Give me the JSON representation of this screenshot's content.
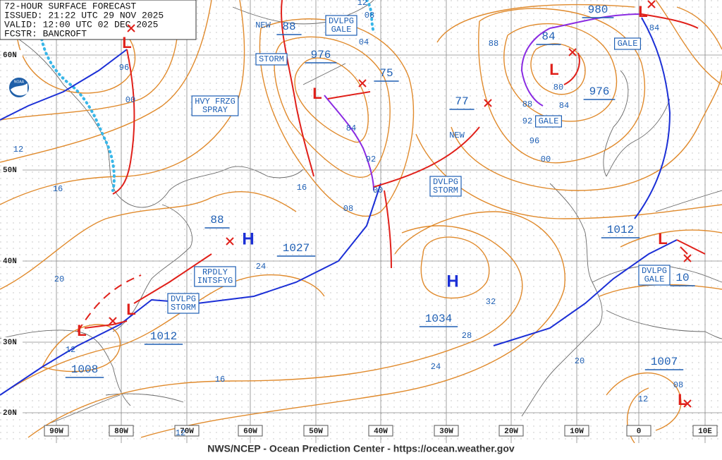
{
  "header": [
    "72-HOUR SURFACE FORECAST",
    "ISSUED: 21:22 UTC 29 NOV 2025",
    "VALID: 12:00 UTC 02 DEC 2025",
    "FCSTR: BANCROFT"
  ],
  "footer": "NWS/NCEP - Ocean Prediction Center - https://ocean.weather.gov",
  "logo": "NOAA",
  "lat_labels": [
    "60N",
    "50N",
    "40N",
    "30N",
    "20N"
  ],
  "lon_labels": [
    "90W",
    "80W",
    "70W",
    "60W",
    "50W",
    "40W",
    "30W",
    "20W",
    "10W",
    "0",
    "10E"
  ],
  "pressures": [
    88,
    976,
    75,
    77,
    84,
    980,
    976,
    1012,
    88,
    1027,
    1034,
    1012,
    1008,
    1007,
    10
  ],
  "warnings": [
    {
      "lines": [
        "DVLPG",
        "GALE"
      ]
    },
    {
      "lines": [
        "STORM"
      ]
    },
    {
      "lines": [
        "HVY FRZG",
        "SPRAY"
      ]
    },
    {
      "lines": [
        "GALE"
      ]
    },
    {
      "lines": [
        "GALE"
      ]
    },
    {
      "lines": [
        "DVLPG",
        "STORM"
      ]
    },
    {
      "lines": [
        "RPDLY",
        "INTSFYG"
      ]
    },
    {
      "lines": [
        "DVLPG",
        "STORM"
      ]
    },
    {
      "lines": [
        "DVLPG",
        "GALE"
      ]
    }
  ],
  "notes": [
    "NEW",
    "NEW"
  ],
  "isobar_labels": [
    "96",
    "00",
    "12",
    "16",
    "20",
    "12",
    "16",
    "12",
    "24",
    "16",
    "08",
    "00",
    "92",
    "84",
    "88",
    "80",
    "88",
    "84",
    "92",
    "96",
    "00",
    "32",
    "28",
    "24",
    "20",
    "12",
    "08",
    "84",
    "08",
    "04",
    "12"
  ],
  "highs": [
    "H",
    "H"
  ],
  "lows": [
    "L",
    "L",
    "L",
    "L",
    "L",
    "L",
    "L",
    "L",
    "L"
  ]
}
